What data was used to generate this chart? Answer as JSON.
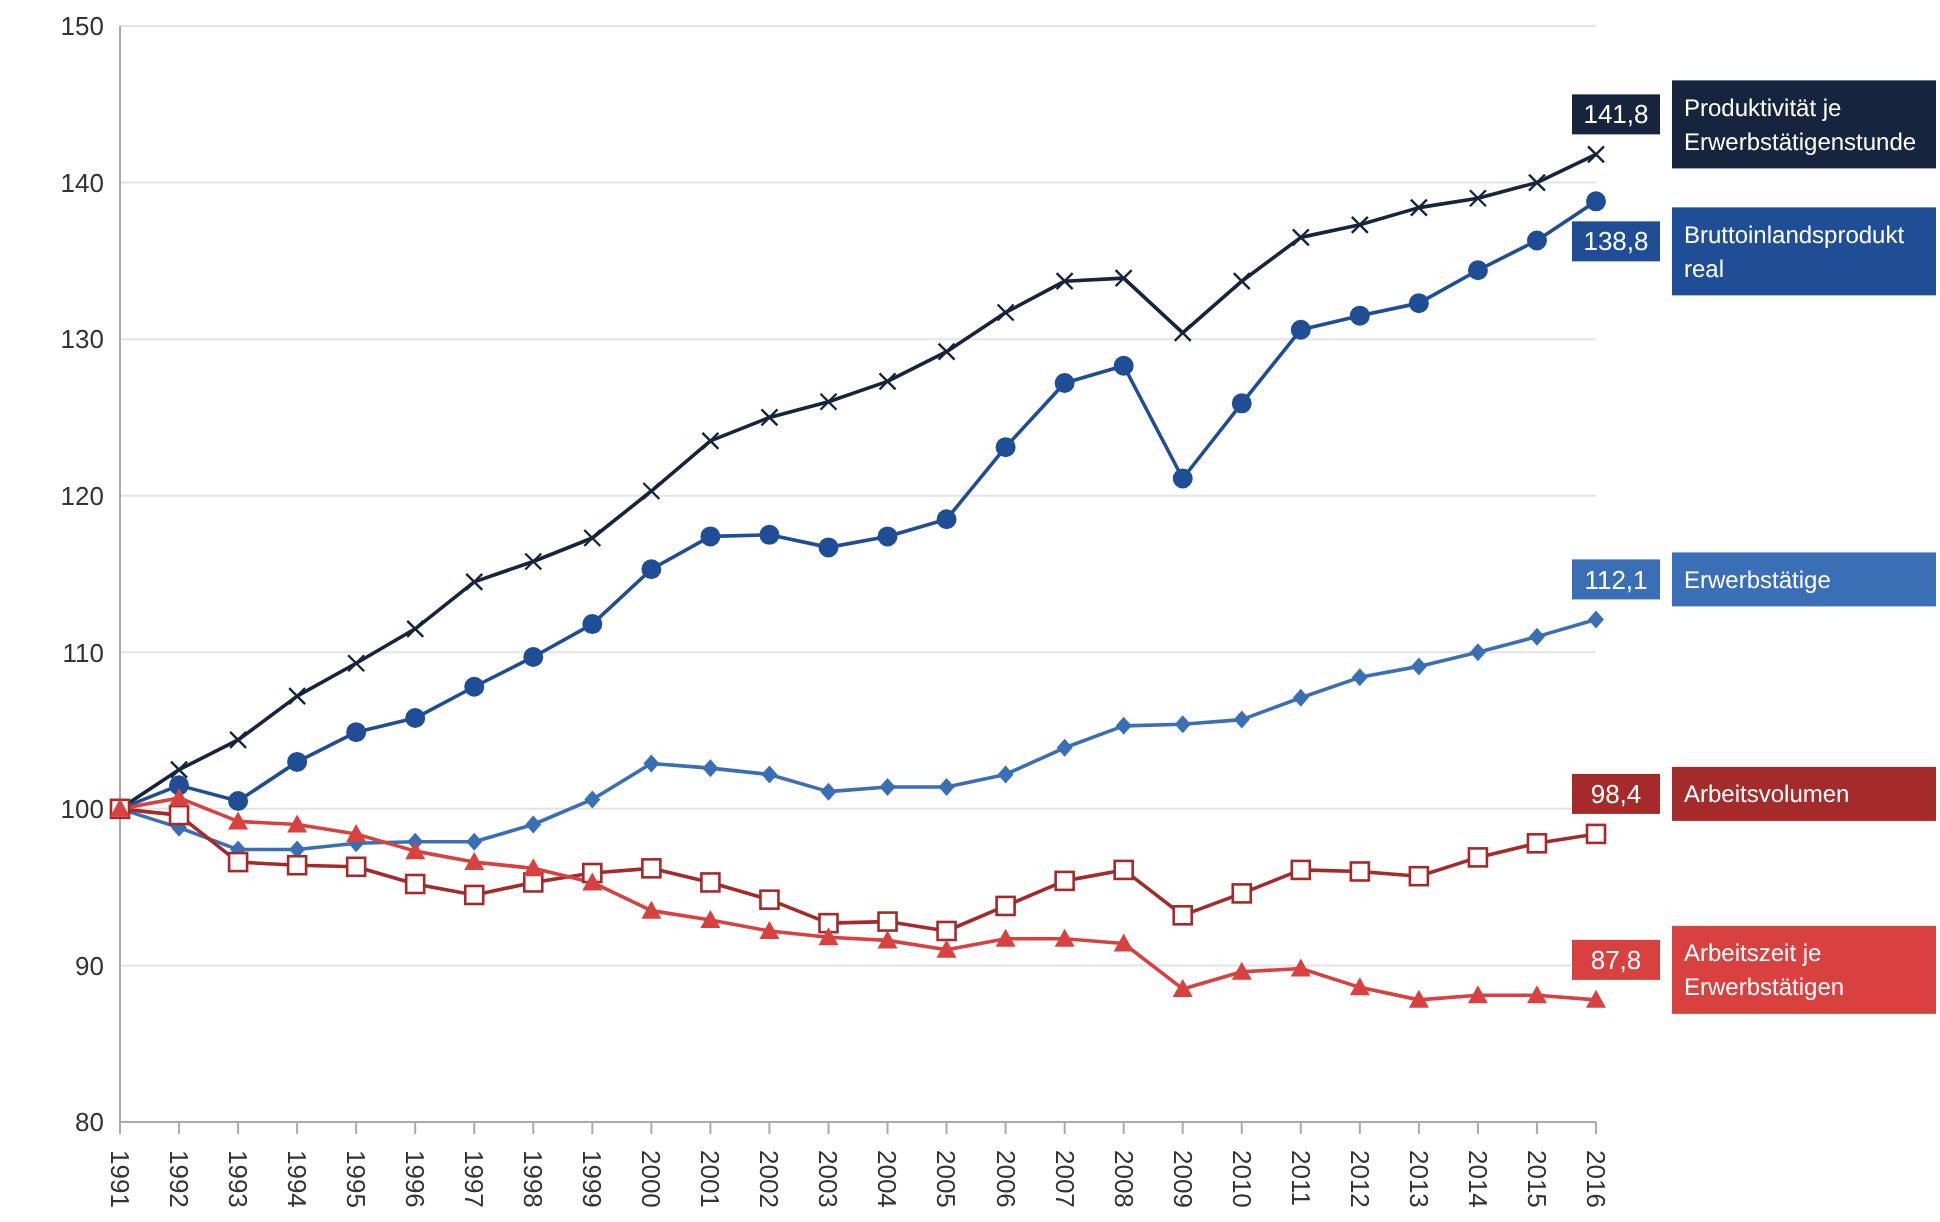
{
  "chart_data": {
    "type": "line",
    "categories": [
      "1991",
      "1992",
      "1993",
      "1994",
      "1995",
      "1996",
      "1997",
      "1998",
      "1999",
      "2000",
      "2001",
      "2002",
      "2003",
      "2004",
      "2005",
      "2006",
      "2007",
      "2008",
      "2009",
      "2010",
      "2011",
      "2012",
      "2013",
      "2014",
      "2015",
      "2016"
    ],
    "ylim": [
      80,
      150
    ],
    "yticks": [
      80,
      90,
      100,
      110,
      120,
      130,
      140,
      150
    ],
    "grid": "y",
    "legend": "right",
    "line_style": "solid",
    "series": [
      {
        "name": "Produktivität je Erwerbstätigenstunde",
        "color": "#16243d",
        "marker": "cross",
        "values": [
          100,
          102.5,
          104.4,
          107.2,
          109.3,
          111.5,
          114.5,
          115.8,
          117.3,
          120.3,
          123.5,
          125,
          126,
          127.3,
          129.2,
          131.7,
          133.7,
          133.9,
          130.4,
          133.7,
          136.5,
          137.3,
          138.4,
          139,
          140,
          141.8
        ],
        "value_labels": [
          null,
          null,
          null,
          null,
          null,
          null,
          null,
          null,
          null,
          null,
          null,
          null,
          null,
          null,
          null,
          null,
          null,
          null,
          null,
          null,
          null,
          null,
          null,
          null,
          null,
          "141,8"
        ]
      },
      {
        "name": "Bruttoinlandsprodukt real",
        "color": "#1f4e96",
        "marker": "circle",
        "values": [
          100,
          101.5,
          100.5,
          103,
          104.9,
          105.8,
          107.8,
          109.7,
          111.8,
          115.3,
          117.4,
          117.5,
          116.7,
          117.4,
          118.5,
          123.1,
          127.2,
          128.3,
          121.1,
          125.9,
          130.6,
          131.5,
          132.3,
          134.4,
          136.3,
          138.8
        ],
        "value_labels": [
          null,
          null,
          null,
          null,
          null,
          null,
          null,
          null,
          null,
          null,
          null,
          null,
          null,
          null,
          null,
          null,
          null,
          null,
          null,
          null,
          null,
          null,
          null,
          null,
          null,
          "138,8"
        ]
      },
      {
        "name": "Erwerbstätige",
        "color": "#3a6fb5",
        "marker": "diamond",
        "values": [
          100,
          98.8,
          97.4,
          97.4,
          97.8,
          97.9,
          97.9,
          99,
          100.6,
          102.9,
          102.6,
          102.2,
          101.1,
          101.4,
          101.4,
          102.2,
          103.9,
          105.3,
          105.4,
          105.7,
          107.1,
          108.4,
          109.1,
          110,
          111,
          112.1
        ],
        "value_labels": [
          null,
          null,
          null,
          null,
          null,
          null,
          null,
          null,
          null,
          null,
          null,
          null,
          null,
          null,
          null,
          null,
          null,
          null,
          null,
          null,
          null,
          null,
          null,
          null,
          null,
          "112,1"
        ]
      },
      {
        "name": "Arbeitsvolumen",
        "color": "#a52a2a",
        "marker": "square",
        "values": [
          100,
          99.6,
          96.6,
          96.4,
          96.3,
          95.2,
          94.5,
          95.3,
          95.9,
          96.2,
          95.3,
          94.2,
          92.7,
          92.8,
          92.2,
          93.8,
          95.4,
          96.1,
          93.2,
          94.6,
          96.1,
          96,
          95.7,
          96.9,
          97.8,
          98.4
        ],
        "value_labels": [
          null,
          null,
          null,
          null,
          null,
          null,
          null,
          null,
          null,
          null,
          null,
          null,
          null,
          null,
          null,
          null,
          null,
          null,
          null,
          null,
          null,
          null,
          null,
          null,
          null,
          "98,4"
        ]
      },
      {
        "name": "Arbeitszeit je Erwerbstätigen",
        "color": "#d94040",
        "marker": "triangle",
        "values": [
          100,
          100.7,
          99.2,
          99,
          98.4,
          97.3,
          96.6,
          96.2,
          95.3,
          93.5,
          92.9,
          92.2,
          91.8,
          91.6,
          91,
          91.7,
          91.7,
          91.4,
          88.5,
          89.6,
          89.8,
          88.6,
          87.8,
          88.1,
          88.1,
          87.8
        ],
        "value_labels": [
          null,
          null,
          null,
          null,
          null,
          null,
          null,
          null,
          null,
          null,
          null,
          null,
          null,
          null,
          null,
          null,
          null,
          null,
          null,
          null,
          null,
          null,
          null,
          null,
          null,
          "87,8"
        ]
      }
    ]
  }
}
